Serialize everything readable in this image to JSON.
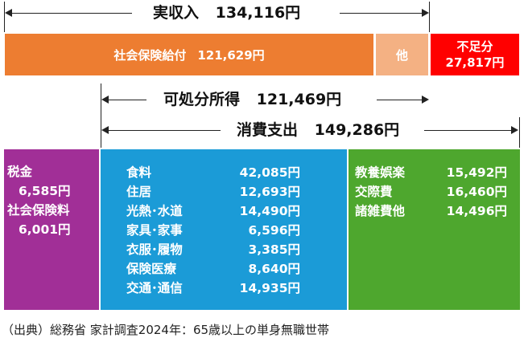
{
  "income": {
    "label": "実収入",
    "value": "134,116円"
  },
  "bar": {
    "social_benefit": {
      "label": "社会保険給付",
      "value": "121,629円"
    },
    "other": {
      "label": "他"
    },
    "shortfall": {
      "label": "不足分",
      "value": "27,817円"
    }
  },
  "disposable": {
    "label": "可処分所得",
    "value": "121,469円"
  },
  "consumption": {
    "label": "消費支出",
    "value": "149,286円"
  },
  "tax_box": {
    "items": [
      {
        "label": "税金",
        "value": "6,585円"
      },
      {
        "label": "社会保険料",
        "value": "6,001円"
      }
    ]
  },
  "blue_box": {
    "items": [
      {
        "label": "食料",
        "value": "42,085円"
      },
      {
        "label": "住居",
        "value": "12,693円"
      },
      {
        "label": "光熱･水道",
        "value": "14,490円"
      },
      {
        "label": "家具･家事",
        "value": "6,596円"
      },
      {
        "label": "衣服･履物",
        "value": "3,385円"
      },
      {
        "label": "保険医療",
        "value": "8,640円"
      },
      {
        "label": "交通･通信",
        "value": "14,935円"
      }
    ]
  },
  "green_box": {
    "items": [
      {
        "label": "教養娯楽",
        "value": "15,492円"
      },
      {
        "label": "交際費",
        "value": "16,460円"
      },
      {
        "label": "諸雑費他",
        "value": "14,496円"
      }
    ]
  },
  "colors": {
    "orange": "#ED7D31",
    "light_orange": "#F4B183",
    "red": "#FF0000",
    "purple": "#A12F97",
    "blue": "#1B9BD7",
    "green": "#4EA72E"
  },
  "source": "（出典）総務省 家計調査2024年：65歳以上の単身無職世帯"
}
